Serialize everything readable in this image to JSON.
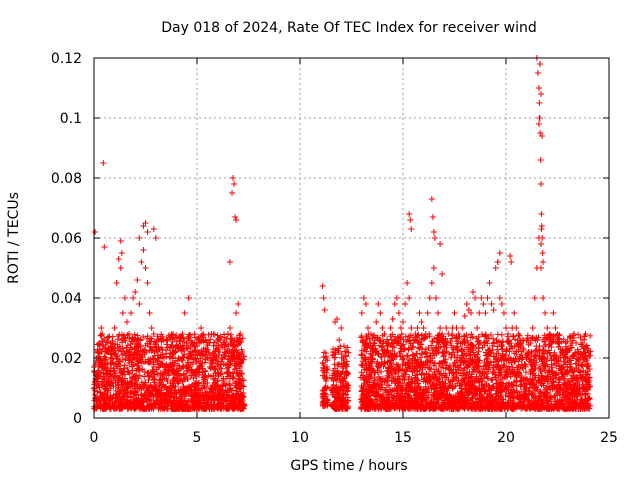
{
  "chart_data": {
    "type": "scatter",
    "title": "Day 018 of 2024, Rate Of TEC Index for receiver wind",
    "xlabel": "GPS time / hours",
    "ylabel": "ROTI / TECUs",
    "xlim": [
      0,
      25
    ],
    "ylim": [
      0,
      0.12
    ],
    "grid": true,
    "x_ticks": [
      0,
      5,
      10,
      15,
      20,
      25
    ],
    "x_tick_labels": [
      "0",
      "5",
      "10",
      "15",
      "20",
      "25"
    ],
    "y_ticks": [
      0,
      0.02,
      0.04,
      0.06,
      0.08,
      0.1,
      0.12
    ],
    "y_tick_labels": [
      "0",
      "0.02",
      "0.04",
      "0.06",
      "0.08",
      "0.1",
      "0.12"
    ],
    "marker": "+",
    "color": "#ff0000",
    "series": [
      {
        "name": "ROTI",
        "x": [
          0.0,
          0.05,
          0.1,
          0.15,
          0.2,
          0.3,
          0.35,
          0.4,
          0.45,
          0.5,
          0.55,
          0.6,
          0.7,
          0.8,
          0.9,
          1.0,
          1.1,
          1.2,
          1.3,
          1.4,
          1.5,
          1.6,
          1.7,
          1.8,
          1.9,
          2.0,
          2.1,
          2.2,
          2.3,
          2.4,
          2.5,
          2.6,
          2.7,
          2.8,
          2.9,
          3.0,
          3.1,
          3.2,
          3.3,
          3.4,
          3.5,
          3.6,
          3.7,
          3.8,
          3.9,
          4.0,
          4.1,
          4.2,
          4.3,
          4.4,
          4.5,
          4.6,
          4.7,
          4.8,
          4.9,
          5.0,
          5.1,
          5.2,
          5.3,
          5.4,
          5.5,
          5.6,
          5.7,
          5.8,
          5.9,
          6.0,
          6.1,
          6.2,
          6.3,
          6.4,
          6.5,
          6.6,
          6.7,
          6.8,
          6.9,
          7.0,
          7.1,
          7.2,
          0.05,
          0.45,
          0.5,
          1.3,
          1.35,
          2.2,
          2.4,
          2.5,
          2.6,
          2.9,
          3.0,
          4.6,
          6.6,
          6.7,
          6.75,
          6.8,
          6.85,
          6.9,
          0.2,
          0.8,
          1.6,
          2.7,
          3.3,
          4.2,
          5.0,
          5.7,
          6.3,
          7.0,
          11.1,
          11.15,
          11.2,
          11.25,
          11.3,
          11.6,
          11.7,
          11.8,
          11.9,
          12.0,
          12.1,
          12.2,
          12.3,
          11.1,
          11.2,
          11.9,
          12.1,
          13.0,
          13.1,
          13.2,
          13.3,
          13.4,
          13.5,
          13.6,
          13.7,
          13.8,
          13.9,
          14.0,
          14.1,
          14.2,
          14.3,
          14.4,
          14.5,
          14.6,
          14.7,
          14.8,
          14.9,
          15.0,
          15.1,
          15.2,
          15.3,
          15.4,
          15.5,
          15.6,
          15.7,
          15.8,
          15.9,
          16.0,
          16.1,
          16.2,
          16.3,
          16.4,
          16.5,
          16.6,
          16.7,
          16.8,
          16.9,
          17.0,
          17.1,
          17.2,
          17.3,
          17.4,
          17.5,
          17.6,
          17.7,
          17.8,
          17.9,
          18.0,
          18.1,
          18.2,
          18.3,
          18.4,
          18.5,
          18.6,
          18.7,
          18.8,
          18.9,
          19.0,
          19.1,
          19.2,
          19.3,
          19.4,
          19.5,
          19.6,
          19.7,
          19.8,
          19.9,
          20.0,
          20.1,
          20.2,
          20.3,
          20.4,
          20.5,
          20.6,
          20.7,
          20.8,
          20.9,
          21.0,
          21.1,
          21.2,
          21.3,
          21.4,
          21.5,
          21.6,
          21.7,
          21.8,
          21.9,
          22.0,
          22.1,
          22.2,
          22.3,
          22.4,
          22.5,
          22.6,
          22.7,
          22.8,
          22.9,
          23.0,
          23.1,
          23.2,
          23.3,
          23.4,
          23.5,
          23.6,
          23.7,
          23.8,
          23.9,
          24.0,
          15.3,
          15.35,
          15.4,
          16.4,
          16.45,
          16.5,
          16.55,
          16.8,
          16.9,
          19.6,
          19.7,
          20.2,
          20.25,
          21.5,
          21.55,
          21.6,
          21.62,
          21.64,
          21.66,
          21.68,
          21.7,
          21.72,
          21.74,
          21.76,
          21.78,
          21.8,
          21.65,
          21.7,
          21.75,
          21.6,
          21.62,
          21.7,
          21.72,
          14.2,
          14.8,
          15.9,
          17.3,
          18.3,
          19.2,
          20.8,
          22.4,
          23.2,
          13.5,
          14.6,
          16.0,
          17.8,
          18.9,
          20.4,
          22.8,
          23.7
        ],
        "y": [
          0.017,
          0.012,
          0.019,
          0.014,
          0.022,
          0.018,
          0.03,
          0.028,
          0.024,
          0.02,
          0.016,
          0.015,
          0.022,
          0.018,
          0.025,
          0.03,
          0.045,
          0.053,
          0.05,
          0.035,
          0.04,
          0.032,
          0.028,
          0.035,
          0.04,
          0.042,
          0.046,
          0.038,
          0.052,
          0.056,
          0.05,
          0.045,
          0.035,
          0.03,
          0.028,
          0.025,
          0.022,
          0.02,
          0.018,
          0.02,
          0.018,
          0.016,
          0.02,
          0.022,
          0.018,
          0.016,
          0.02,
          0.024,
          0.028,
          0.035,
          0.025,
          0.02,
          0.022,
          0.018,
          0.02,
          0.024,
          0.026,
          0.03,
          0.028,
          0.022,
          0.02,
          0.025,
          0.028,
          0.024,
          0.02,
          0.018,
          0.022,
          0.02,
          0.018,
          0.022,
          0.028,
          0.03,
          0.026,
          0.024,
          0.035,
          0.038,
          0.028,
          0.022,
          0.062,
          0.085,
          0.057,
          0.059,
          0.055,
          0.06,
          0.064,
          0.065,
          0.062,
          0.063,
          0.06,
          0.04,
          0.052,
          0.075,
          0.08,
          0.078,
          0.067,
          0.066,
          0.004,
          0.006,
          0.005,
          0.007,
          0.004,
          0.005,
          0.006,
          0.007,
          0.006,
          0.008,
          0.044,
          0.04,
          0.036,
          0.02,
          0.015,
          0.022,
          0.032,
          0.033,
          0.026,
          0.03,
          0.02,
          0.018,
          0.015,
          0.008,
          0.006,
          0.007,
          0.005,
          0.035,
          0.04,
          0.038,
          0.03,
          0.024,
          0.02,
          0.025,
          0.032,
          0.038,
          0.035,
          0.03,
          0.028,
          0.022,
          0.025,
          0.03,
          0.033,
          0.038,
          0.04,
          0.035,
          0.03,
          0.032,
          0.038,
          0.045,
          0.04,
          0.03,
          0.025,
          0.028,
          0.03,
          0.035,
          0.032,
          0.03,
          0.028,
          0.035,
          0.04,
          0.045,
          0.05,
          0.04,
          0.035,
          0.03,
          0.028,
          0.025,
          0.03,
          0.028,
          0.025,
          0.03,
          0.035,
          0.03,
          0.028,
          0.025,
          0.03,
          0.034,
          0.038,
          0.036,
          0.035,
          0.042,
          0.04,
          0.03,
          0.035,
          0.04,
          0.038,
          0.035,
          0.04,
          0.045,
          0.038,
          0.036,
          0.05,
          0.052,
          0.04,
          0.038,
          0.035,
          0.03,
          0.028,
          0.025,
          0.03,
          0.035,
          0.03,
          0.028,
          0.025,
          0.02,
          0.018,
          0.02,
          0.022,
          0.025,
          0.03,
          0.04,
          0.05,
          0.06,
          0.05,
          0.04,
          0.035,
          0.03,
          0.028,
          0.025,
          0.035,
          0.03,
          0.028,
          0.025,
          0.022,
          0.02,
          0.025,
          0.022,
          0.02,
          0.025,
          0.028,
          0.025,
          0.022,
          0.02,
          0.025,
          0.022,
          0.02,
          0.022,
          0.068,
          0.066,
          0.063,
          0.073,
          0.067,
          0.062,
          0.06,
          0.058,
          0.048,
          0.052,
          0.055,
          0.054,
          0.052,
          0.12,
          0.115,
          0.11,
          0.105,
          0.1,
          0.095,
          0.086,
          0.078,
          0.068,
          0.064,
          0.06,
          0.055,
          0.052,
          0.118,
          0.108,
          0.094,
          0.098,
          0.1,
          0.058,
          0.063,
          0.005,
          0.006,
          0.004,
          0.007,
          0.006,
          0.005,
          0.007,
          0.006,
          0.005,
          0.01,
          0.012,
          0.009,
          0.011,
          0.01,
          0.012,
          0.009,
          0.011
        ]
      }
    ],
    "dense_band": {
      "description": "continuous noise band of ROTI values",
      "segments": [
        {
          "x_start": 0.0,
          "x_end": 7.3,
          "y_low": 0.003,
          "y_high": 0.028
        },
        {
          "x_start": 11.1,
          "x_end": 11.35,
          "y_low": 0.004,
          "y_high": 0.022
        },
        {
          "x_start": 11.55,
          "x_end": 12.35,
          "y_low": 0.003,
          "y_high": 0.024
        },
        {
          "x_start": 12.95,
          "x_end": 24.1,
          "y_low": 0.003,
          "y_high": 0.028
        }
      ]
    }
  }
}
